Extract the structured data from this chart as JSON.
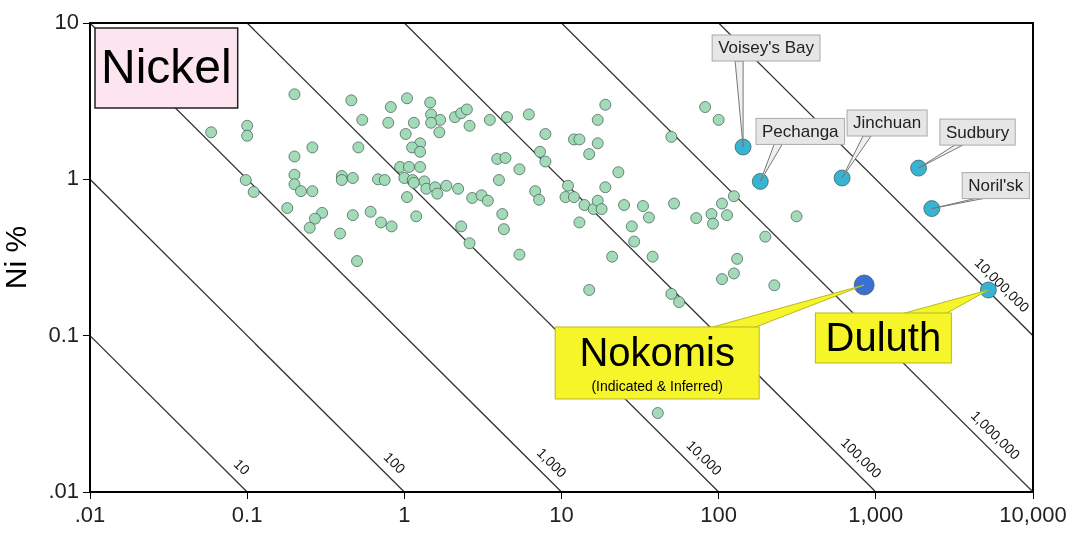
{
  "chart_data": {
    "type": "scatter",
    "title": "Nickel",
    "ylabel": "Ni %",
    "log": "xy",
    "marker": "circle",
    "xlim": [
      0.01,
      10000
    ],
    "ylim": [
      0.01,
      10
    ],
    "xticks": [
      {
        "value": 0.01,
        "label": ".01"
      },
      0.1,
      1,
      10,
      100,
      {
        "value": 1000,
        "label": "1,000"
      },
      {
        "value": 10000,
        "label": "10,000"
      }
    ],
    "yticks": [
      {
        "value": 0.01,
        "label": ".01"
      },
      0.1,
      1,
      10
    ],
    "series": [
      {
        "color": "#a3dbb9",
        "x": [
          0.2,
          0.46,
          0.82,
          1.04,
          1.46,
          1.48,
          1.69,
          0.54,
          0.79,
          1.15,
          1.48,
          1.67,
          0.059,
          0.1,
          0.1,
          1.02,
          0.26,
          0.51,
          1.26,
          1.12,
          1.26,
          0.2,
          0.94,
          1.07,
          1.26,
          0.2,
          0.4,
          0.4,
          0.47,
          0.68,
          0.75,
          1.0,
          1.13,
          1.34,
          0.098,
          0.11,
          0.2,
          0.22,
          0.26,
          1.15,
          1.38,
          1.57,
          1.62,
          1.04,
          0.18,
          0.3,
          0.27,
          0.25,
          0.47,
          0.61,
          0.71,
          0.83,
          1.19,
          0.39,
          0.5,
          2.1,
          2.3,
          2.5,
          2.6,
          3.5,
          4.5,
          6.2,
          19,
          17,
          7.9,
          12,
          13,
          17,
          15,
          7.3,
          7.9,
          3.9,
          4.4,
          5.4,
          23,
          50,
          82,
          100,
          1.85,
          2.2,
          4.0,
          2.7,
          3.1,
          3.4,
          6.8,
          7.2,
          11,
          10.6,
          12,
          14,
          16,
          17,
          18,
          19,
          25,
          33,
          36,
          52,
          72,
          90,
          92,
          105,
          4.2,
          4.3,
          2.3,
          2.6,
          5.4,
          13,
          28,
          29,
          21,
          38,
          105,
          15,
          50,
          56,
          125,
          113,
          313,
          198,
          131,
          125,
          226,
          41
        ],
        "values": [
          3.5,
          3.2,
          2.9,
          3.3,
          3.1,
          2.6,
          2.4,
          2.4,
          2.3,
          2.3,
          2.3,
          2.0,
          2.0,
          2.2,
          1.9,
          1.95,
          1.6,
          1.6,
          1.7,
          1.6,
          1.5,
          1.4,
          1.2,
          1.2,
          1.2,
          1.07,
          1.05,
          0.99,
          1.02,
          1.0,
          0.99,
          1.02,
          0.99,
          0.97,
          0.99,
          0.83,
          0.93,
          0.84,
          0.84,
          0.95,
          0.87,
          0.89,
          0.81,
          0.77,
          0.655,
          0.61,
          0.56,
          0.49,
          0.59,
          0.62,
          0.53,
          0.5,
          0.58,
          0.45,
          0.3,
          2.5,
          2.65,
          2.8,
          2.2,
          2.4,
          2.5,
          2.6,
          3.0,
          2.4,
          1.95,
          1.8,
          1.8,
          1.7,
          1.45,
          1.5,
          1.3,
          1.35,
          1.37,
          1.16,
          1.11,
          1.87,
          2.9,
          2.4,
          0.91,
          0.87,
          0.99,
          0.76,
          0.79,
          0.73,
          0.84,
          0.74,
          0.91,
          0.77,
          0.77,
          0.685,
          0.645,
          0.73,
          0.645,
          0.89,
          0.685,
          0.675,
          0.57,
          0.7,
          0.565,
          0.6,
          0.52,
          0.7,
          0.6,
          0.48,
          0.5,
          0.39,
          0.33,
          0.53,
          0.5,
          0.4,
          0.32,
          0.32,
          0.23,
          0.196,
          0.185,
          0.164,
          0.78,
          0.59,
          0.58,
          0.43,
          0.31,
          0.25,
          0.21,
          0.032
        ]
      },
      {
        "color": "#37b3d3",
        "x": [
          143,
          184,
          610,
          1870,
          2270,
          5200
        ],
        "values": [
          1.61,
          0.97,
          1.02,
          1.18,
          0.65,
          0.196
        ]
      },
      {
        "color": "#3a6fd4",
        "x": [
          843
        ],
        "values": [
          0.211
        ]
      },
      {
        "type": "line",
        "marker": "none",
        "color": "#333333",
        "x": [
          0.01,
          0.1
        ],
        "values": [
          0.1,
          0.01
        ]
      },
      {
        "type": "line",
        "marker": "none",
        "color": "#333333",
        "x": [
          0.01,
          1
        ],
        "values": [
          1,
          0.01
        ]
      },
      {
        "type": "line",
        "marker": "none",
        "color": "#333333",
        "x": [
          0.01,
          10
        ],
        "values": [
          10,
          0.01
        ]
      },
      {
        "type": "line",
        "marker": "none",
        "color": "#333333",
        "x": [
          0.1,
          100
        ],
        "values": [
          10,
          0.01
        ]
      },
      {
        "type": "line",
        "marker": "none",
        "color": "#333333",
        "x": [
          1,
          1000
        ],
        "values": [
          10,
          0.01
        ]
      },
      {
        "type": "line",
        "marker": "none",
        "color": "#333333",
        "x": [
          10,
          10000
        ],
        "values": [
          10,
          0.01
        ]
      },
      {
        "type": "line",
        "marker": "none",
        "color": "#333333",
        "x": [
          100,
          10000
        ],
        "values": [
          10,
          0.1
        ]
      }
    ],
    "annotations": [
      {
        "text": "10",
        "x": 0.08,
        "y": 0.0125
      },
      {
        "text": "100",
        "x": 0.75,
        "y": 0.0133
      },
      {
        "text": "1,000",
        "x": 7.5,
        "y": 0.0133
      },
      {
        "text": "10,000",
        "x": 70,
        "y": 0.0143
      },
      {
        "text": "100,000",
        "x": 700,
        "y": 0.0143
      },
      {
        "text": "1,000,000",
        "x": 5000,
        "y": 0.02
      },
      {
        "text": "10,000,000",
        "x": 5500,
        "y": 0.182
      },
      {
        "text": "Voisey's Bay",
        "x": 143,
        "y": 1.61
      },
      {
        "text": "Pechanga",
        "x": 184,
        "y": 0.97
      },
      {
        "text": "Jinchuan",
        "x": 610,
        "y": 1.02
      },
      {
        "text": "Sudbury",
        "x": 1870,
        "y": 1.18
      },
      {
        "text": "Noril'sk",
        "x": 2270,
        "y": 0.65
      },
      {
        "text": "Nokomis",
        "x": 843,
        "y": 0.211
      },
      "(Indicated & Inferred)",
      {
        "text": "Duluth",
        "x": 5200,
        "y": 0.196
      }
    ]
  }
}
